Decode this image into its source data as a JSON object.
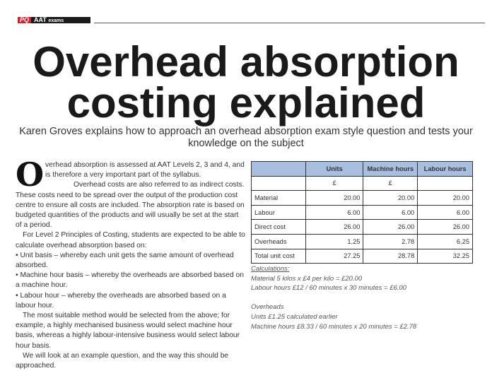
{
  "header": {
    "brand": "PQ",
    "section_main": "AAT",
    "section_sub": "exams"
  },
  "title": {
    "line1": "Overhead absorption",
    "line2": "costing explained"
  },
  "subtitle": "Karen Groves explains how to approach an overhead absorption exam style question and tests your knowledge on the subject",
  "body": {
    "drop_cap": "O",
    "p1": "verhead absorption is assessed at AAT Levels 2, 3 and 4, and is therefore a very important part of the syllabus.",
    "p2": "Overhead costs are also referred to as indirect costs. These costs need to be spread over the output of the production cost centre to ensure all costs are included. The absorption rate is based on budgeted quantities of the products and will usually be set at the start of a period.",
    "p3": "For Level 2 Principles of Costing, students are expected to be able to calculate overhead absorption based on:",
    "bullets": [
      "• Unit basis – whereby each unit gets the same amount of overhead absorbed.",
      "• Machine hour basis – whereby the overheads are absorbed based on a machine hour.",
      "• Labour hour – whereby the overheads are absorbed based on a labour hour."
    ],
    "p4": "The most suitable method would be selected from the above; for example, a highly mechanised business would select machine hour basis, whereas a highly labour-intensive business would select labour hour basis.",
    "p5": "We will look at an example question, and the way this should be approached."
  },
  "table": {
    "headers": [
      "",
      "Units",
      "Machine hours",
      "Labour hours"
    ],
    "units_row": [
      "",
      "£",
      "£",
      ""
    ],
    "rows": [
      [
        "Material",
        "20.00",
        "20.00",
        "20.00"
      ],
      [
        "Labour",
        "6.00",
        "6.00",
        "6.00"
      ],
      [
        "Direct cost",
        "26.00",
        "26.00",
        "26.00"
      ],
      [
        "Overheads",
        "1.25",
        "2.78",
        "6.25"
      ],
      [
        "Total unit cost",
        "27.25",
        "28.78",
        "32.25"
      ]
    ],
    "header_color": "#a9bfe0"
  },
  "calculations": {
    "heading": "Calculations:",
    "lines": [
      "Material 5 kilos x £4 per kilo = £20.00",
      "Labour hours £12 / 60 minutes x 30 minutes = £6.00"
    ],
    "overheads_heading": "Overheads",
    "overheads_lines": [
      "Units £1.25 calculated earlier",
      "Machine hours £8.33 / 60 minutes x 20 minutes = £2.78"
    ]
  }
}
